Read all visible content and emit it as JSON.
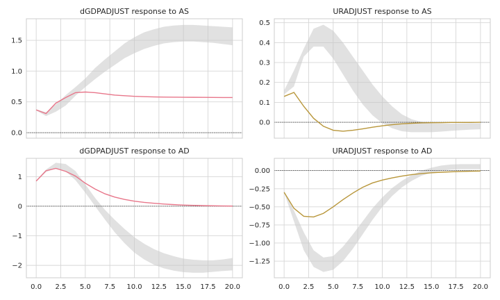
{
  "chart_data": [
    {
      "type": "line",
      "title": "dGDPADJUST response to AS",
      "xlabel": "",
      "ylabel": "",
      "xlim": [
        -1,
        21
      ],
      "ylim": [
        -0.09,
        1.85
      ],
      "xticks": [
        0,
        2.5,
        5,
        7.5,
        10,
        12.5,
        15,
        17.5,
        20
      ],
      "xticklabels": [],
      "yticks": [
        0.0,
        0.5,
        1.0,
        1.5
      ],
      "yticklabels": [
        "0.0",
        "0.5",
        "1.0",
        "1.5"
      ],
      "grid": true,
      "zero_line": true,
      "line_color": "#e8768a",
      "band_color": "#c8c8c8",
      "x": [
        0,
        1,
        2,
        3,
        4,
        5,
        6,
        7,
        8,
        9,
        10,
        11,
        12,
        13,
        14,
        15,
        16,
        17,
        18,
        19,
        20
      ],
      "values": [
        0.37,
        0.31,
        0.48,
        0.57,
        0.65,
        0.66,
        0.65,
        0.63,
        0.61,
        0.6,
        0.59,
        0.585,
        0.58,
        0.578,
        0.576,
        0.575,
        0.574,
        0.573,
        0.572,
        0.571,
        0.57
      ],
      "band_lower": [
        0.36,
        0.27,
        0.34,
        0.44,
        0.6,
        0.74,
        0.87,
        0.99,
        1.1,
        1.21,
        1.29,
        1.36,
        1.41,
        1.45,
        1.47,
        1.48,
        1.48,
        1.47,
        1.46,
        1.44,
        1.42
      ],
      "band_upper": [
        0.38,
        0.33,
        0.46,
        0.61,
        0.74,
        0.88,
        1.05,
        1.19,
        1.32,
        1.45,
        1.55,
        1.63,
        1.68,
        1.72,
        1.74,
        1.75,
        1.75,
        1.74,
        1.73,
        1.72,
        1.71
      ]
    },
    {
      "type": "line",
      "title": "URADJUST response to AS",
      "xlabel": "",
      "ylabel": "",
      "xlim": [
        -1,
        21
      ],
      "ylim": [
        -0.08,
        0.52
      ],
      "xticks": [
        0,
        2.5,
        5,
        7.5,
        10,
        12.5,
        15,
        17.5,
        20
      ],
      "xticklabels": [],
      "yticks": [
        0.0,
        0.1,
        0.2,
        0.3,
        0.4,
        0.5
      ],
      "yticklabels": [
        "0.0",
        "0.1",
        "0.2",
        "0.3",
        "0.4",
        "0.5"
      ],
      "grid": true,
      "zero_line": true,
      "line_color": "#b8963a",
      "band_color": "#c8c8c8",
      "x": [
        0,
        1,
        2,
        3,
        4,
        5,
        6,
        7,
        8,
        9,
        10,
        11,
        12,
        13,
        14,
        15,
        16,
        17,
        18,
        19,
        20
      ],
      "values": [
        0.13,
        0.15,
        0.08,
        0.02,
        -0.02,
        -0.04,
        -0.045,
        -0.04,
        -0.033,
        -0.025,
        -0.018,
        -0.012,
        -0.008,
        -0.005,
        -0.003,
        -0.002,
        -0.002,
        -0.001,
        -0.001,
        -0.001,
        0.0
      ],
      "band_lower": [
        0.14,
        0.18,
        0.33,
        0.38,
        0.38,
        0.32,
        0.24,
        0.16,
        0.09,
        0.035,
        -0.005,
        -0.03,
        -0.045,
        -0.05,
        -0.05,
        -0.05,
        -0.047,
        -0.043,
        -0.04,
        -0.037,
        -0.035
      ],
      "band_upper": [
        0.16,
        0.26,
        0.37,
        0.47,
        0.49,
        0.46,
        0.4,
        0.33,
        0.26,
        0.19,
        0.13,
        0.08,
        0.04,
        0.015,
        0.002,
        -0.005,
        -0.007,
        -0.007,
        -0.006,
        -0.005,
        -0.005
      ]
    },
    {
      "type": "line",
      "title": "dGDPADJUST response to AD",
      "xlabel": "",
      "ylabel": "",
      "xlim": [
        -1,
        21
      ],
      "ylim": [
        -2.42,
        1.62
      ],
      "xticks": [
        0,
        2.5,
        5,
        7.5,
        10,
        12.5,
        15,
        17.5,
        20
      ],
      "xticklabels": [
        "0.0",
        "2.5",
        "5.0",
        "7.5",
        "10.0",
        "12.5",
        "15.0",
        "17.5",
        "20.0"
      ],
      "yticks": [
        -2,
        -1,
        0,
        1
      ],
      "yticklabels": [
        "−2",
        "−1",
        "0",
        "1"
      ],
      "grid": true,
      "zero_line": true,
      "line_color": "#e8768a",
      "band_color": "#c8c8c8",
      "x": [
        0,
        1,
        2,
        3,
        4,
        5,
        6,
        7,
        8,
        9,
        10,
        11,
        12,
        13,
        14,
        15,
        16,
        17,
        18,
        19,
        20
      ],
      "values": [
        0.85,
        1.2,
        1.28,
        1.18,
        1.02,
        0.78,
        0.58,
        0.42,
        0.31,
        0.23,
        0.17,
        0.13,
        0.1,
        0.075,
        0.055,
        0.04,
        0.03,
        0.02,
        0.015,
        0.01,
        0.005
      ],
      "band_lower": [
        0.83,
        1.16,
        1.28,
        1.18,
        0.88,
        0.46,
        0.0,
        -0.45,
        -0.88,
        -1.25,
        -1.57,
        -1.8,
        -1.98,
        -2.1,
        -2.18,
        -2.23,
        -2.25,
        -2.25,
        -2.22,
        -2.19,
        -2.17
      ],
      "band_upper": [
        0.87,
        1.24,
        1.47,
        1.43,
        1.19,
        0.74,
        0.28,
        -0.12,
        -0.46,
        -0.77,
        -1.05,
        -1.27,
        -1.45,
        -1.59,
        -1.69,
        -1.77,
        -1.81,
        -1.83,
        -1.83,
        -1.8,
        -1.75
      ]
    },
    {
      "type": "line",
      "title": "URADJUST response to AD",
      "xlabel": "",
      "ylabel": "",
      "xlim": [
        -1,
        21
      ],
      "ylim": [
        -1.48,
        0.17
      ],
      "xticks": [
        0,
        2.5,
        5,
        7.5,
        10,
        12.5,
        15,
        17.5,
        20
      ],
      "xticklabels": [
        "0.0",
        "2.5",
        "5.0",
        "7.5",
        "10.0",
        "12.5",
        "15.0",
        "17.5",
        "20.0"
      ],
      "yticks": [
        -1.25,
        -1.0,
        -0.75,
        -0.5,
        -0.25,
        0.0
      ],
      "yticklabels": [
        "−1.25",
        "−1.00",
        "−0.75",
        "−0.50",
        "−0.25",
        "0.00"
      ],
      "grid": true,
      "zero_line": true,
      "line_color": "#b8963a",
      "band_color": "#c8c8c8",
      "x": [
        0,
        1,
        2,
        3,
        4,
        5,
        6,
        7,
        8,
        9,
        10,
        11,
        12,
        13,
        14,
        15,
        16,
        17,
        18,
        19,
        20
      ],
      "values": [
        -0.3,
        -0.52,
        -0.63,
        -0.64,
        -0.59,
        -0.5,
        -0.4,
        -0.31,
        -0.23,
        -0.17,
        -0.13,
        -0.1,
        -0.075,
        -0.055,
        -0.04,
        -0.03,
        -0.022,
        -0.016,
        -0.012,
        -0.008,
        -0.005
      ],
      "band_lower": [
        -0.3,
        -0.7,
        -1.1,
        -1.33,
        -1.4,
        -1.37,
        -1.25,
        -1.08,
        -0.88,
        -0.68,
        -0.5,
        -0.35,
        -0.23,
        -0.14,
        -0.07,
        -0.03,
        0.0,
        0.015,
        0.02,
        0.02,
        0.02
      ],
      "band_upper": [
        -0.28,
        -0.55,
        -0.85,
        -1.1,
        -1.2,
        -1.18,
        -1.05,
        -0.88,
        -0.7,
        -0.52,
        -0.37,
        -0.24,
        -0.14,
        -0.06,
        0.0,
        0.04,
        0.07,
        0.085,
        0.09,
        0.09,
        0.09
      ]
    }
  ]
}
